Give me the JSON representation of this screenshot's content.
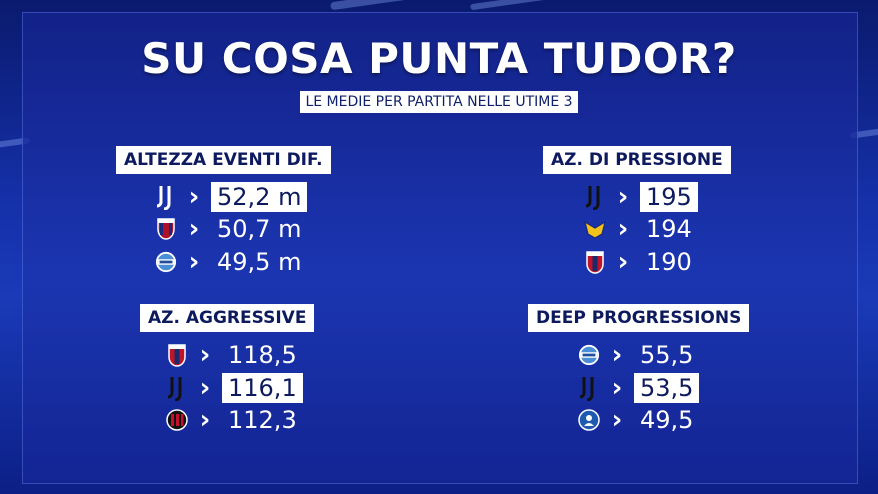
{
  "title": "SU COSA PUNTA TUDOR?",
  "subtitle": "LE MEDIE PER PARTITA NELLE UTIME 3",
  "sections": [
    {
      "label": "ALTEZZA EVENTI DIF.",
      "rows": [
        {
          "logo": "juventus-logo",
          "value": "52,2 m",
          "highlight": true
        },
        {
          "logo": "bologna-logo",
          "value": "50,7 m",
          "highlight": false
        },
        {
          "logo": "como-logo",
          "value": "49,5 m",
          "highlight": false
        }
      ]
    },
    {
      "label": "AZ. DI PRESSIONE",
      "rows": [
        {
          "logo": "juventus-logo",
          "value": "195",
          "highlight": true
        },
        {
          "logo": "verona-logo",
          "value": "194",
          "highlight": false
        },
        {
          "logo": "genoa-logo",
          "value": "190",
          "highlight": false
        }
      ]
    },
    {
      "label": "AZ. AGGRESSIVE",
      "rows": [
        {
          "logo": "genoa-logo",
          "value": "118,5",
          "highlight": false
        },
        {
          "logo": "juventus-logo",
          "value": "116,1",
          "highlight": true
        },
        {
          "logo": "milan-logo",
          "value": "112,3",
          "highlight": false
        }
      ]
    },
    {
      "label": "DEEP PROGRESSIONS",
      "rows": [
        {
          "logo": "como-logo",
          "value": "55,5",
          "highlight": false
        },
        {
          "logo": "juventus-logo",
          "value": "53,5",
          "highlight": true
        },
        {
          "logo": "atalanta-logo",
          "value": "49,5",
          "highlight": false
        }
      ]
    }
  ]
}
